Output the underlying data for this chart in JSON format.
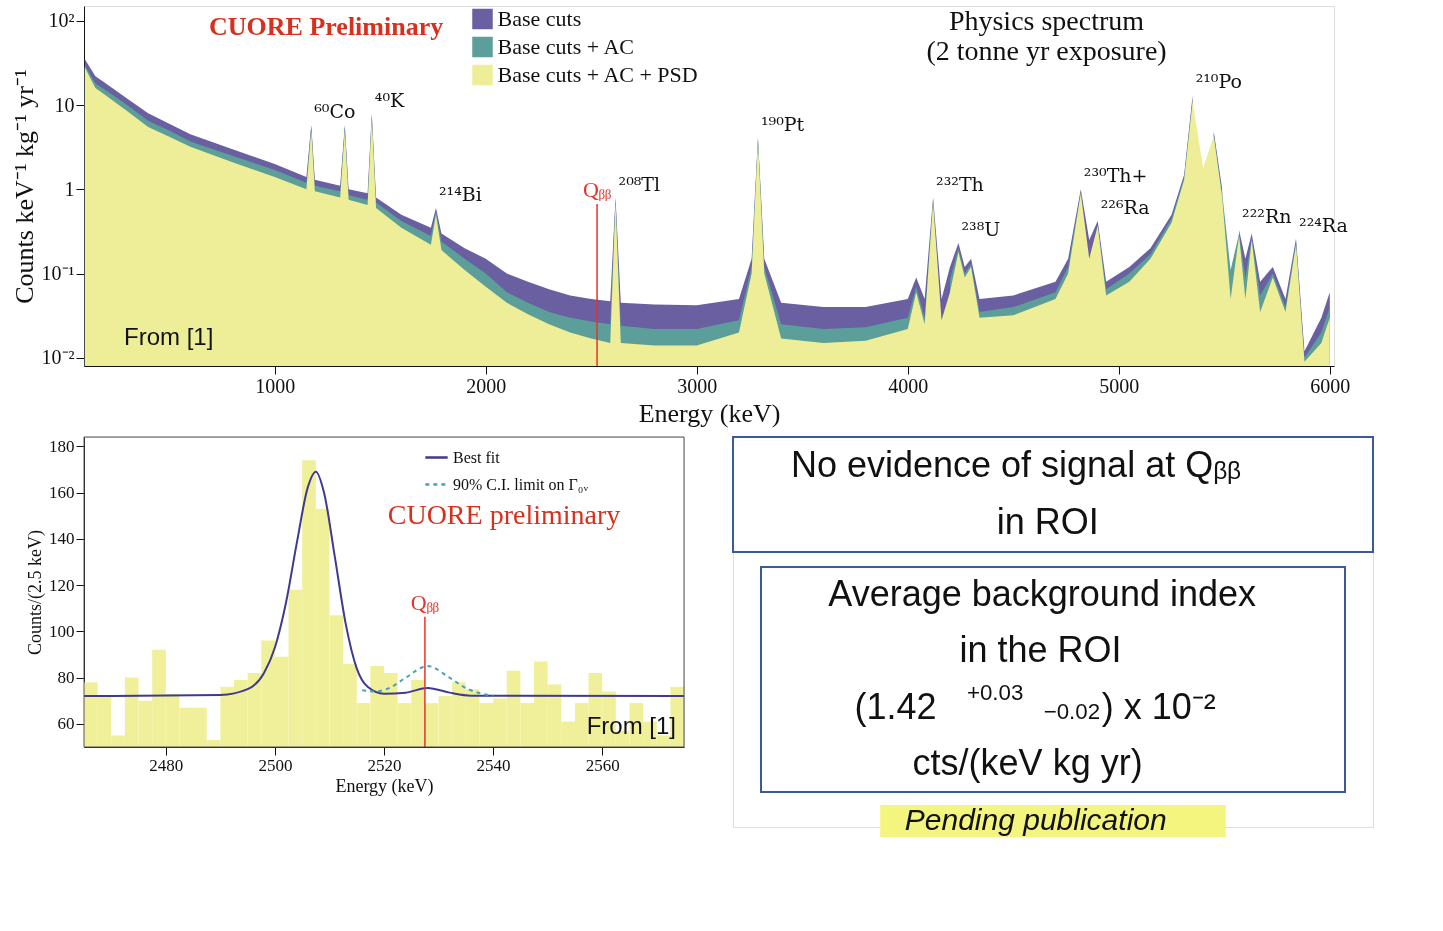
{
  "chart_data": [
    {
      "type": "area",
      "title": "Physics spectrum\n(2 tonne yr exposure)",
      "xlabel": "Energy (keV)",
      "ylabel": "Counts keV⁻¹ kg⁻¹ yr⁻¹",
      "log": "y",
      "legend": "top",
      "xlim": [
        96,
        6020
      ],
      "xticks": [
        1000,
        2000,
        3000,
        4000,
        5000,
        6000
      ],
      "ylim": [
        0.008,
        150
      ],
      "yticks": [
        {
          "value": 0.01,
          "label": "10⁻²"
        },
        {
          "value": 0.1,
          "label": "10⁻¹"
        },
        1,
        10,
        {
          "value": 100,
          "label": "10²"
        }
      ],
      "x": [
        100,
        150,
        200,
        300,
        400,
        500,
        600,
        800,
        1000,
        1150,
        1173,
        1190,
        1310,
        1332,
        1350,
        1440,
        1460,
        1480,
        1600,
        1740,
        1764,
        1790,
        1900,
        2000,
        2100,
        2200,
        2300,
        2400,
        2500,
        2590,
        2615,
        2640,
        2800,
        3000,
        3200,
        3260,
        3290,
        3320,
        3400,
        3600,
        3800,
        4000,
        4040,
        4080,
        4120,
        4160,
        4200,
        4240,
        4270,
        4300,
        4340,
        4500,
        4700,
        4760,
        4820,
        4860,
        4900,
        4940,
        5050,
        5150,
        5250,
        5310,
        5350,
        5400,
        5450,
        5490,
        5530,
        5570,
        5600,
        5630,
        5670,
        5730,
        5790,
        5840,
        5880,
        5960,
        6000
      ],
      "series": [
        {
          "name": "Base cuts",
          "color": "#6a5fa0",
          "values": [
            35,
            22,
            18,
            12,
            8,
            6,
            4.5,
            3,
            2,
            1.4,
            5.8,
            1.3,
            1.1,
            5.8,
            1.0,
            0.9,
            7.9,
            0.8,
            0.5,
            0.35,
            0.6,
            0.3,
            0.2,
            0.15,
            0.1,
            0.08,
            0.065,
            0.055,
            0.05,
            0.047,
            0.8,
            0.045,
            0.043,
            0.042,
            0.05,
            0.15,
            4.1,
            0.15,
            0.045,
            0.04,
            0.04,
            0.05,
            0.09,
            0.05,
            0.8,
            0.05,
            0.12,
            0.23,
            0.12,
            0.15,
            0.05,
            0.055,
            0.08,
            0.15,
            1.0,
            0.25,
            0.42,
            0.08,
            0.12,
            0.2,
            0.5,
            1.5,
            13,
            null,
            4.9,
            1,
            null,
            0.33,
            0.15,
            0.3,
            0.08,
            0.12,
            0.05,
            0.26,
            0.012,
            0.03,
            0.06
          ]
        },
        {
          "name": "Base cuts + AC",
          "color": "#5c9e9a",
          "values": [
            30,
            18,
            15,
            10,
            6.5,
            5,
            3.7,
            2.5,
            1.7,
            1.2,
            5.5,
            1.1,
            0.95,
            5.5,
            0.85,
            0.75,
            7.5,
            0.7,
            0.42,
            0.28,
            0.55,
            0.24,
            0.15,
            0.1,
            0.06,
            0.045,
            0.035,
            0.03,
            0.027,
            0.025,
            0.75,
            0.024,
            0.022,
            0.022,
            0.028,
            0.12,
            4.0,
            0.12,
            0.025,
            0.022,
            0.023,
            0.03,
            0.07,
            0.03,
            0.75,
            null,
            0.085,
            0.2,
            0.1,
            0.13,
            0.035,
            0.04,
            0.06,
            0.12,
            0.95,
            null,
            0.4,
            0.065,
            0.1,
            0.17,
            0.45,
            1.4,
            12,
            null,
            4.6,
            0.9,
            0.11,
            0.3,
            0.09,
            0.27,
            0.055,
            0.1,
            0.04,
            0.24,
            0.01,
            0.02,
            0.04
          ]
        },
        {
          "name": "Base cuts + AC + PSD",
          "color": "#eeee99",
          "values": [
            28,
            16,
            13,
            8.5,
            5.5,
            4.2,
            3.2,
            2.1,
            1.4,
            1.0,
            5.0,
            0.95,
            0.8,
            5.0,
            0.75,
            0.65,
            7.0,
            0.6,
            0.35,
            0.22,
            0.5,
            0.19,
            0.11,
            0.07,
            0.045,
            0.033,
            0.025,
            0.02,
            0.017,
            0.015,
            0.7,
            0.015,
            0.014,
            0.014,
            0.02,
            0.1,
            3.8,
            0.1,
            0.017,
            0.015,
            0.016,
            0.022,
            0.06,
            0.025,
            0.7,
            0.028,
            0.06,
            0.18,
            0.09,
            0.12,
            0.03,
            0.032,
            0.05,
            0.1,
            0.9,
            0.15,
            0.37,
            0.055,
            0.08,
            0.15,
            0.4,
            1.3,
            11,
            1.8,
            4.3,
            0.8,
            0.05,
            0.28,
            0.05,
            0.25,
            0.035,
            0.09,
            0.035,
            0.22,
            0.009,
            0.015,
            0.03
          ]
        }
      ],
      "ref_lines": [
        {
          "axis": "x",
          "value": 2527.5,
          "label": "Qᵦᵦ",
          "color": "#e8322a"
        }
      ],
      "annotations": [
        "CUORE Preliminary",
        "From [1]",
        {
          "text": "⁶⁰Co",
          "x": 1173,
          "y": 5.8
        },
        {
          "text": "⁴⁰K",
          "x": 1460,
          "y": 7.9
        },
        {
          "text": "²¹⁴Bi",
          "x": 1764,
          "y": 0.6
        },
        {
          "text": "²⁰⁸Tl",
          "x": 2615,
          "y": 0.8
        },
        {
          "text": "¹⁹⁰Pt",
          "x": 3290,
          "y": 4.1
        },
        {
          "text": "²³²Th",
          "x": 4120,
          "y": 0.8
        },
        {
          "text": "²³⁸U",
          "x": 4240,
          "y": 0.23
        },
        {
          "text": "²³⁰Th+",
          "x": 4820,
          "y": 1.0
        },
        {
          "text": "²²⁶Ra",
          "x": 4900,
          "y": 0.42
        },
        {
          "text": "²¹⁰Po",
          "x": 5350,
          "y": 13
        },
        {
          "text": "²²²Rn",
          "x": 5570,
          "y": 0.33
        },
        {
          "text": "²²⁴Ra",
          "x": 5840,
          "y": 0.26
        }
      ]
    },
    {
      "type": "histogram",
      "xlabel": "Energy (keV)",
      "ylabel": "Counts/(2.5 keV)",
      "legend": "top right",
      "color": "#f0f09a",
      "xlim": [
        2465,
        2575
      ],
      "xticks": [
        2480,
        2500,
        2520,
        2540,
        2560
      ],
      "ylim": [
        50,
        184
      ],
      "yticks": [
        60,
        80,
        100,
        120,
        140,
        160,
        180
      ],
      "bins": [
        2465,
        2467.5,
        2470,
        2472.5,
        2475,
        2477.5,
        2480,
        2482.5,
        2485,
        2487.5,
        2490,
        2492.5,
        2495,
        2497.5,
        2500,
        2502.5,
        2505,
        2507.5,
        2510,
        2512.5,
        2515,
        2517.5,
        2520,
        2522.5,
        2525,
        2527.5,
        2530,
        2532.5,
        2535,
        2537.5,
        2540,
        2542.5,
        2545,
        2547.5,
        2550,
        2552.5,
        2555,
        2557.5,
        2560,
        2562.5,
        2565,
        2567.5,
        2570,
        2572.5,
        2575
      ],
      "values": [
        78,
        72,
        55,
        80,
        70,
        92,
        73,
        67,
        67,
        53,
        76,
        79,
        82,
        96,
        89,
        118,
        174,
        153,
        107,
        86,
        69,
        85,
        82,
        69,
        79,
        69,
        72,
        78,
        75,
        69,
        71,
        83,
        69,
        87,
        77,
        61,
        69,
        82,
        74,
        57,
        69,
        61,
        55,
        76
      ],
      "series": [
        {
          "name": "Best fit",
          "type": "line",
          "color": "#3f3a8f",
          "line_style": "solid",
          "x": [
            2465,
            2490,
            2495,
            2498,
            2500,
            2502,
            2504,
            2506,
            2507.5,
            2509,
            2511,
            2513,
            2515,
            2517,
            2520,
            2524,
            2528,
            2532,
            2536,
            2575
          ],
          "values": [
            72,
            72.5,
            75,
            82,
            93,
            112,
            138,
            162,
            169,
            160,
            132,
            103,
            84,
            76,
            73,
            73.5,
            75.5,
            73.5,
            72.2,
            72
          ]
        },
        {
          "name": "90% C.I. limit on Γ₀ᵥ",
          "type": "line",
          "color": "#4aa3b5",
          "line_style": "dashed",
          "x": [
            2516,
            2518,
            2521,
            2524,
            2528,
            2532,
            2535,
            2538,
            2540
          ],
          "values": [
            74.5,
            74,
            75.5,
            80,
            85,
            80,
            75.5,
            73,
            72.2
          ]
        }
      ],
      "ref_lines": [
        {
          "axis": "x",
          "value": 2527.5,
          "label": "Qᵦᵦ",
          "color": "#e8322a"
        }
      ],
      "annotations": [
        "CUORE preliminary",
        "From [1]"
      ]
    },
    {
      "type": "other",
      "annotations": [
        "No evidence of signal at Qᵦᵦ\nin ROI",
        "Average background index\nin the ROI\n(1.42 $^{+0.03}$ $_{−0.02}$) x 10⁻²\ncts/(keV kg yr)",
        "Pending publication"
      ]
    }
  ]
}
